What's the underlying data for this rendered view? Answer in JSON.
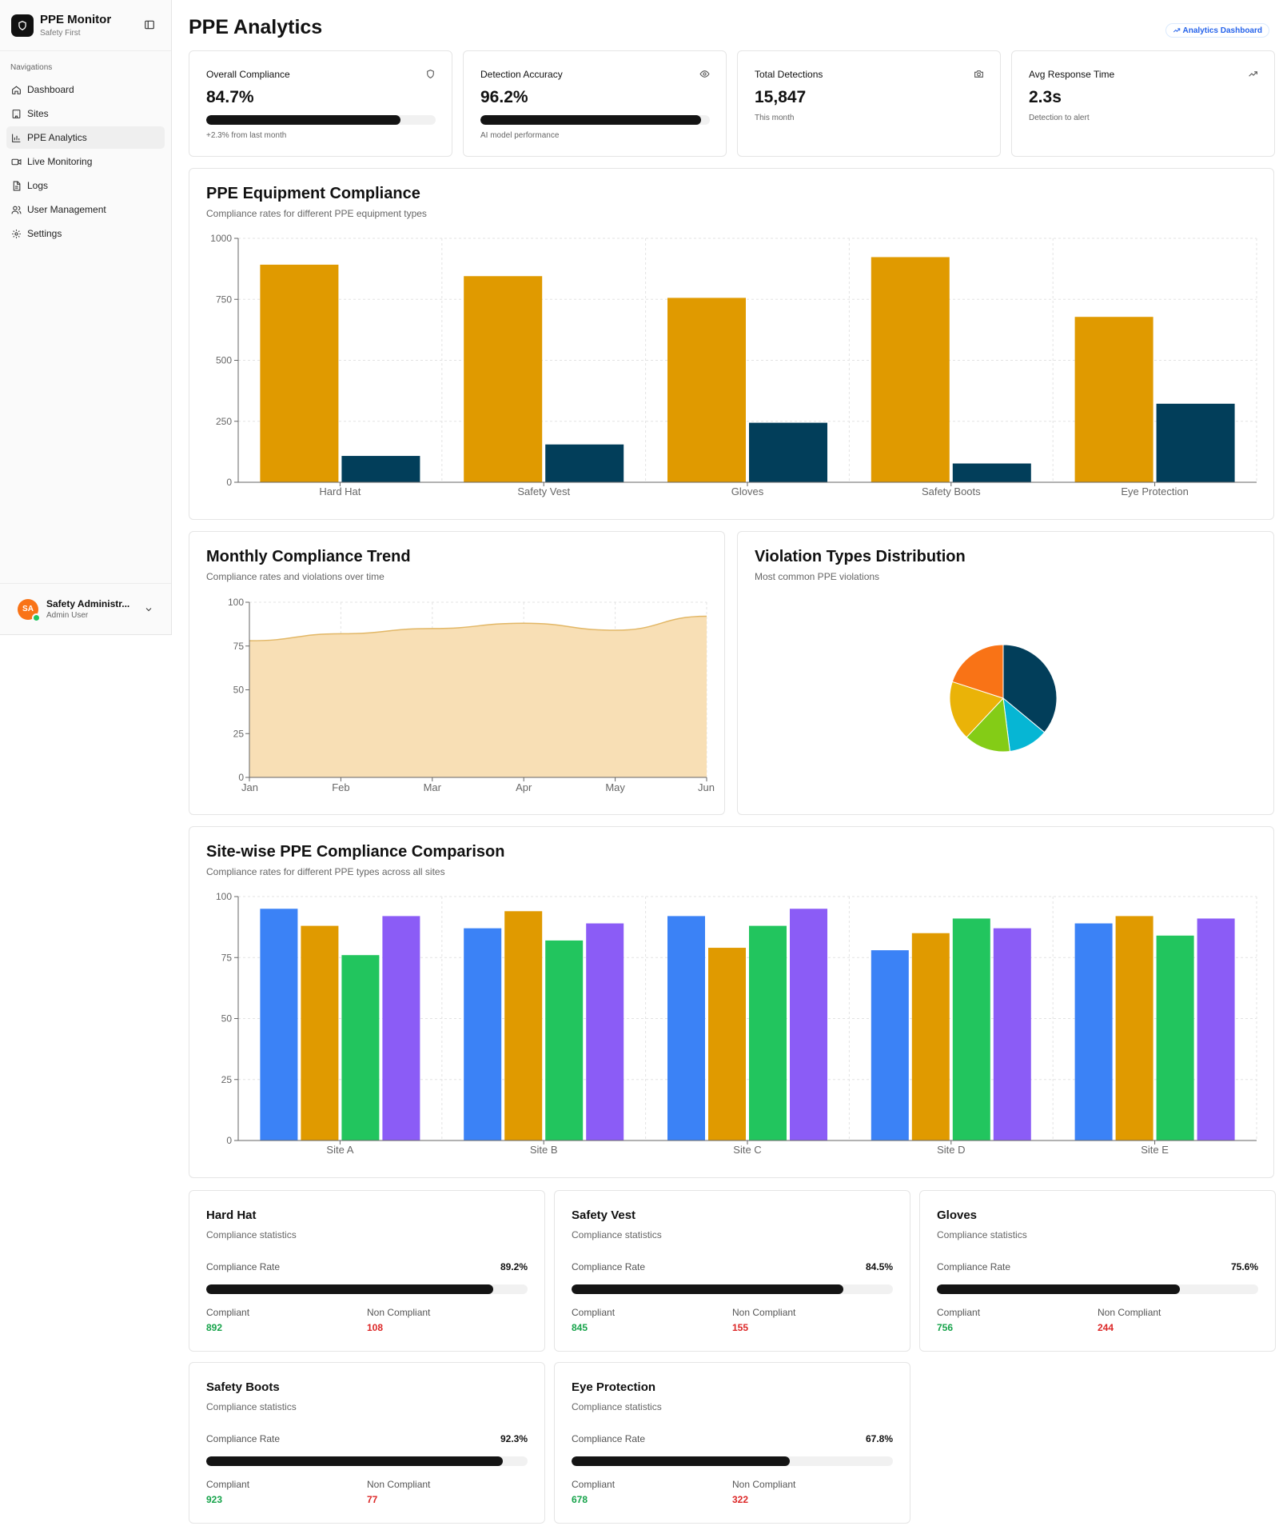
{
  "sidebar": {
    "brand_title": "PPE Monitor",
    "brand_subtitle": "Safety First",
    "section_label": "Navigations",
    "items": [
      {
        "label": "Dashboard",
        "icon": "home-icon"
      },
      {
        "label": "Sites",
        "icon": "building-icon"
      },
      {
        "label": "PPE Analytics",
        "icon": "bar-chart-icon",
        "active": true
      },
      {
        "label": "Live Monitoring",
        "icon": "video-icon"
      },
      {
        "label": "Logs",
        "icon": "file-icon"
      },
      {
        "label": "User Management",
        "icon": "users-icon"
      },
      {
        "label": "Settings",
        "icon": "gear-icon"
      }
    ],
    "user": {
      "initials": "SA",
      "name": "Safety Administr...",
      "role": "Admin User"
    }
  },
  "header": {
    "title": "PPE Analytics",
    "badge": "Analytics Dashboard"
  },
  "stats": [
    {
      "label": "Overall Compliance",
      "value": "84.7%",
      "progress": 84.7,
      "note": "+2.3% from last month",
      "icon": "shield-icon"
    },
    {
      "label": "Detection Accuracy",
      "value": "96.2%",
      "progress": 96.2,
      "note": "AI model performance",
      "icon": "eye-icon"
    },
    {
      "label": "Total Detections",
      "value": "15,847",
      "note": "This month",
      "icon": "camera-icon"
    },
    {
      "label": "Avg Response Time",
      "value": "2.3s",
      "note": "Detection to alert",
      "icon": "trending-up-icon"
    }
  ],
  "equipment_chart": {
    "title": "PPE Equipment Compliance",
    "subtitle": "Compliance rates for different PPE equipment types"
  },
  "trend_chart": {
    "title": "Monthly Compliance Trend",
    "subtitle": "Compliance rates and violations over time"
  },
  "violation_chart": {
    "title": "Violation Types Distribution",
    "subtitle": "Most common PPE violations"
  },
  "site_chart": {
    "title": "Site-wise PPE Compliance Comparison",
    "subtitle": "Compliance rates for different PPE types across all sites"
  },
  "chart_data": [
    {
      "type": "bar",
      "categories": [
        "Hard Hat",
        "Safety Vest",
        "Gloves",
        "Safety Boots",
        "Eye Protection"
      ],
      "series": [
        {
          "values": [
            892,
            845,
            756,
            923,
            678
          ],
          "color": "#e09a00"
        },
        {
          "values": [
            108,
            155,
            244,
            77,
            322
          ],
          "color": "#023e5a"
        }
      ],
      "ylim": [
        0,
        1000
      ],
      "yticks": [
        "0",
        "250",
        "500",
        "750",
        "1000"
      ],
      "grid": true
    },
    {
      "type": "area",
      "categories": [
        "Jan",
        "Feb",
        "Mar",
        "Apr",
        "May",
        "Jun"
      ],
      "values": [
        78,
        82,
        85,
        88,
        84,
        92
      ],
      "ylim": [
        0,
        100
      ],
      "yticks": [
        "0",
        "25",
        "50",
        "75",
        "100"
      ],
      "fill": "#f8dfb5",
      "stroke": "#e2b766",
      "grid": true
    },
    {
      "type": "pie",
      "slices": [
        {
          "value": 36,
          "color": "#023e5a"
        },
        {
          "value": 12,
          "color": "#06b6d4"
        },
        {
          "value": 14,
          "color": "#84cc16"
        },
        {
          "value": 18,
          "color": "#eab308"
        },
        {
          "value": 20,
          "color": "#f97316"
        }
      ]
    },
    {
      "type": "bar",
      "categories": [
        "Site A",
        "Site B",
        "Site C",
        "Site D",
        "Site E"
      ],
      "series": [
        {
          "values": [
            95,
            87,
            92,
            78,
            89
          ],
          "color": "#3b82f6"
        },
        {
          "values": [
            88,
            94,
            79,
            85,
            92
          ],
          "color": "#e09a00"
        },
        {
          "values": [
            76,
            82,
            88,
            91,
            84
          ],
          "color": "#22c55e"
        },
        {
          "values": [
            92,
            89,
            95,
            87,
            91
          ],
          "color": "#8b5cf6"
        }
      ],
      "ylim": [
        0,
        100
      ],
      "yticks": [
        "0",
        "25",
        "50",
        "75",
        "100"
      ],
      "grid": true
    }
  ],
  "ppe_cards": [
    {
      "title": "Hard Hat",
      "subtitle": "Compliance statistics",
      "rate_label": "Compliance Rate",
      "rate": "89.2%",
      "rate_value": 89.2,
      "compliant_label": "Compliant",
      "compliant": "892",
      "non_compliant_label": "Non Compliant",
      "non_compliant": "108"
    },
    {
      "title": "Safety Vest",
      "subtitle": "Compliance statistics",
      "rate_label": "Compliance Rate",
      "rate": "84.5%",
      "rate_value": 84.5,
      "compliant_label": "Compliant",
      "compliant": "845",
      "non_compliant_label": "Non Compliant",
      "non_compliant": "155"
    },
    {
      "title": "Gloves",
      "subtitle": "Compliance statistics",
      "rate_label": "Compliance Rate",
      "rate": "75.6%",
      "rate_value": 75.6,
      "compliant_label": "Compliant",
      "compliant": "756",
      "non_compliant_label": "Non Compliant",
      "non_compliant": "244"
    },
    {
      "title": "Safety Boots",
      "subtitle": "Compliance statistics",
      "rate_label": "Compliance Rate",
      "rate": "92.3%",
      "rate_value": 92.3,
      "compliant_label": "Compliant",
      "compliant": "923",
      "non_compliant_label": "Non Compliant",
      "non_compliant": "77"
    },
    {
      "title": "Eye Protection",
      "subtitle": "Compliance statistics",
      "rate_label": "Compliance Rate",
      "rate": "67.8%",
      "rate_value": 67.8,
      "compliant_label": "Compliant",
      "compliant": "678",
      "non_compliant_label": "Non Compliant",
      "non_compliant": "322"
    }
  ]
}
